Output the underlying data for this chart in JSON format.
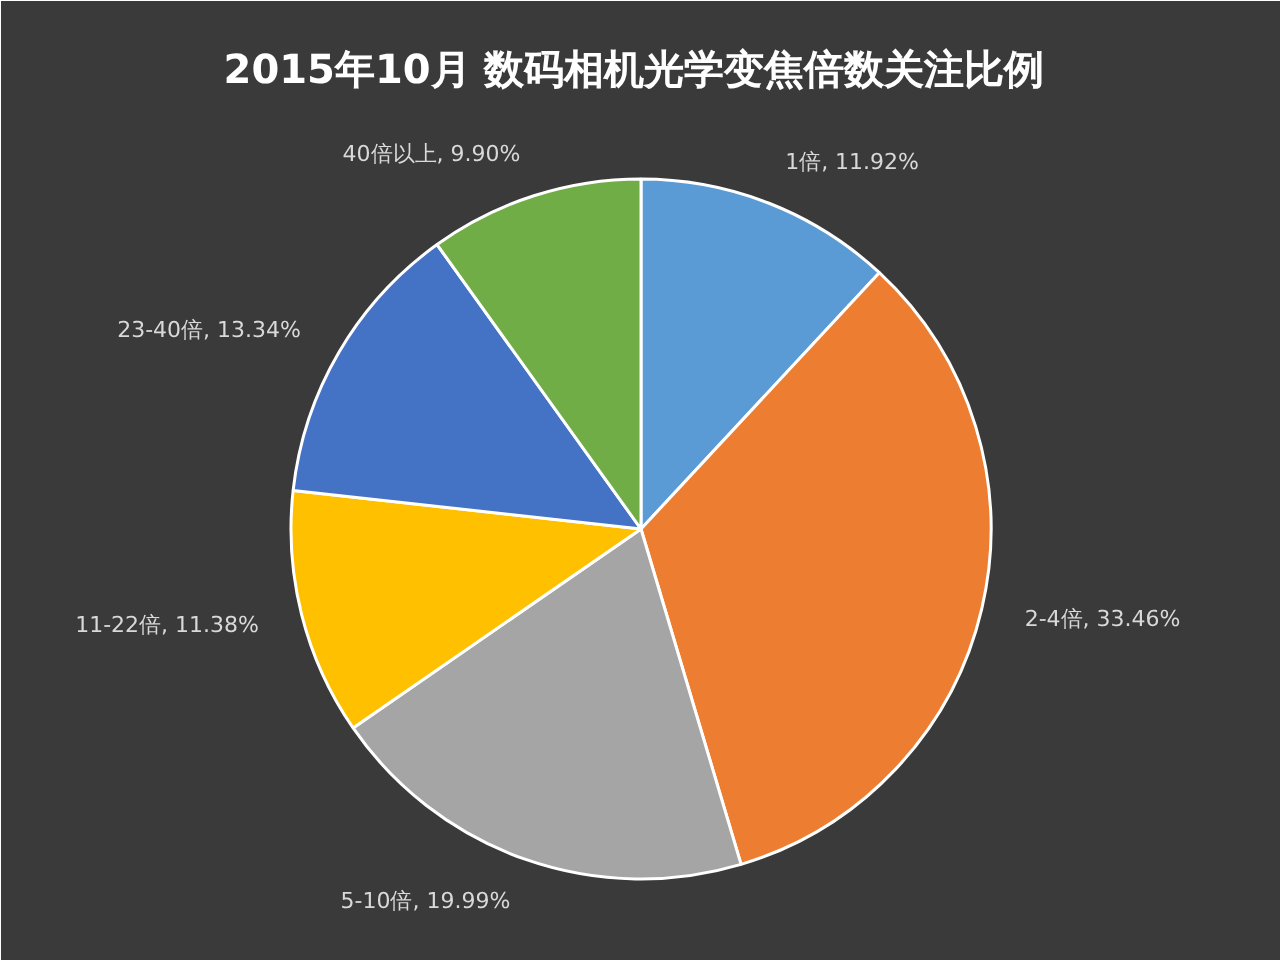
{
  "chart_data": {
    "type": "pie",
    "title": "2015年10月  数码相机光学变焦倍数关注比例",
    "categories": [
      "1倍",
      "2-4倍",
      "5-10倍",
      "11-22倍",
      "23-40倍",
      "40倍以上"
    ],
    "values": [
      11.92,
      33.46,
      19.99,
      11.38,
      13.34,
      9.9
    ],
    "colors": [
      "#5b9bd5",
      "#ed7d31",
      "#a5a5a5",
      "#ffc000",
      "#4472c4",
      "#70ad47"
    ],
    "value_labels": [
      "11.92%",
      "33.46%",
      "19.99%",
      "11.38%",
      "13.34%",
      "9.90%"
    ]
  }
}
